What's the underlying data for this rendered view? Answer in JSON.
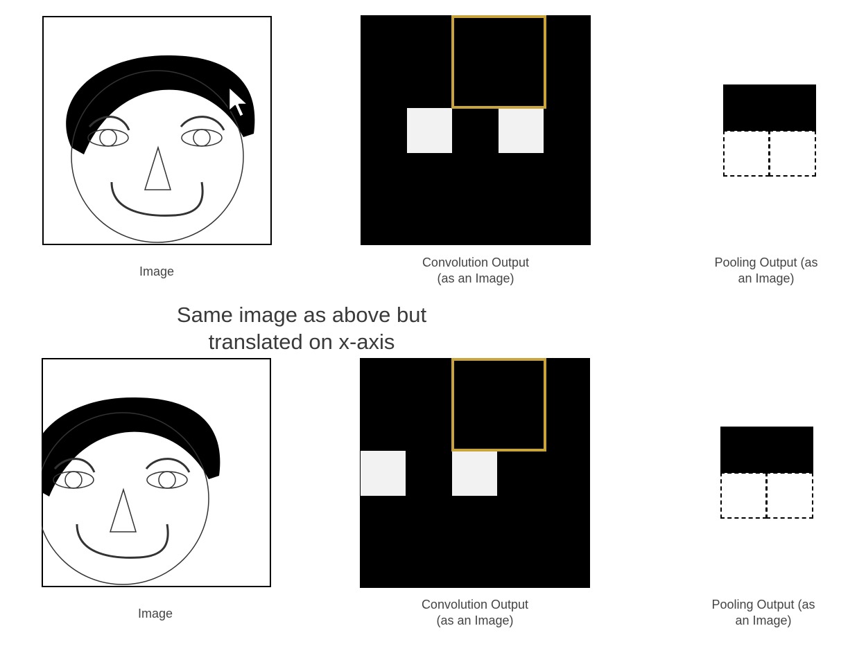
{
  "colors": {
    "feature_map_bg": "#000000",
    "activation": "#f2f2f2",
    "kernel_window": "#c9a43c",
    "caption_text": "#444444"
  },
  "top_row": {
    "image_caption": "Image",
    "conv_caption": "Convolution Output\n(as an Image)",
    "pool_caption": "Pooling Output (as\nan Image)"
  },
  "middle_heading": "Same image as above but\ntranslated on x-axis",
  "bottom_row": {
    "image_caption": "Image",
    "conv_caption": "Convolution Output\n(as an Image)",
    "pool_caption": "Pooling Output (as\nan Image)"
  },
  "icons": {
    "cursor": "mouse-pointer-icon"
  }
}
